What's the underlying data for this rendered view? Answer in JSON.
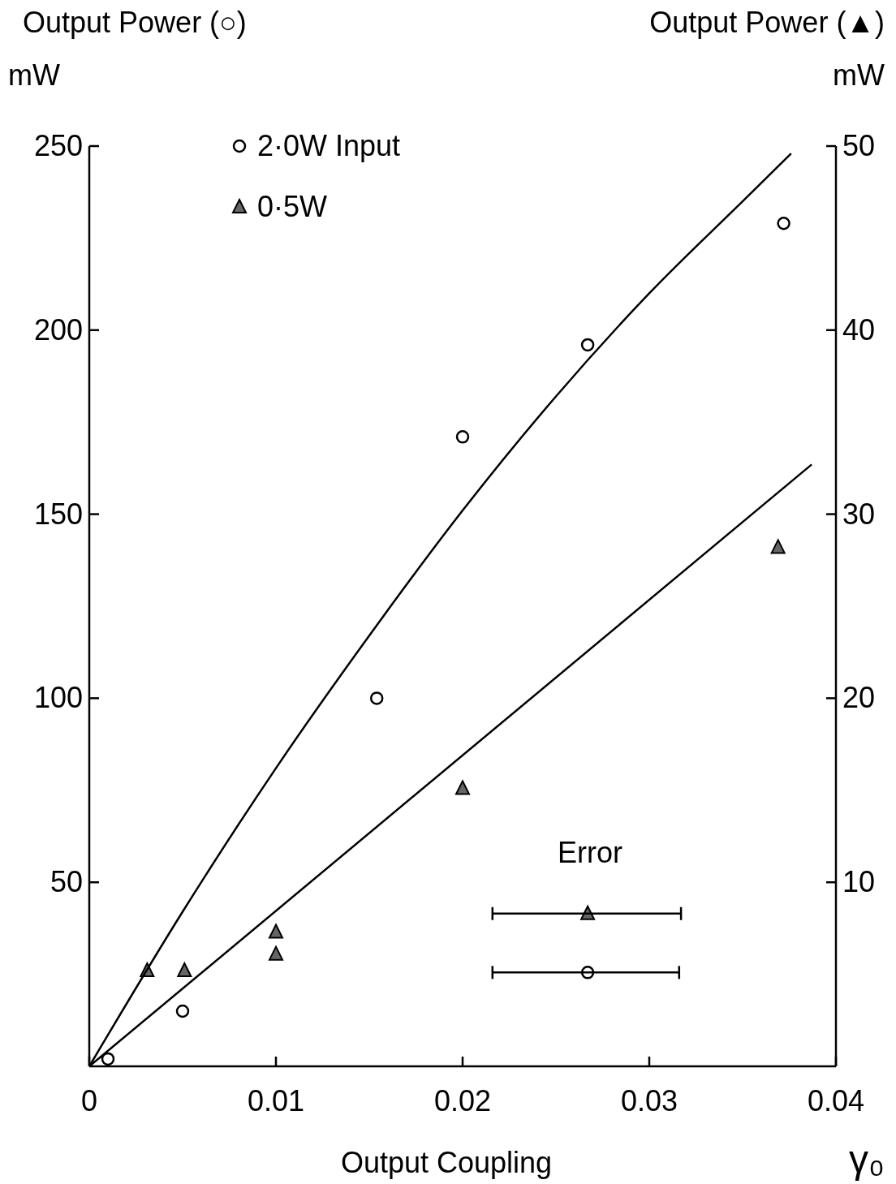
{
  "chart_data": {
    "type": "scatter",
    "xlabel": "Output Coupling",
    "ylabel": "Output Power (○)\nmW",
    "y2label": "Output Power (▲)\nmW",
    "xlim": [
      0,
      0.04
    ],
    "xticks": [
      0,
      0.01,
      0.02,
      0.03,
      0.04
    ],
    "ylim": [
      0,
      250
    ],
    "yticks": [
      50,
      100,
      150,
      200,
      250
    ],
    "y2lim": [
      0,
      50
    ],
    "y2ticks": [
      10,
      20,
      30,
      40,
      50
    ],
    "grid": false,
    "legend": "top left",
    "series": [
      {
        "name": "2·0W Input",
        "marker": "circle",
        "color": "#000000",
        "x": [
          0.001,
          0.005,
          0.0154,
          0.02,
          0.0267,
          0.0372
        ],
        "values": [
          2,
          15,
          100,
          171,
          196,
          229
        ]
      },
      {
        "name": "0·5W",
        "marker": "triangle",
        "color": "#000000",
        "axis": "y2",
        "x": [
          0.0031,
          0.0051,
          0.01,
          0.01,
          0.02,
          0.0369
        ],
        "values": [
          5.2,
          5.2,
          7.3,
          6.1,
          15.1,
          28.2
        ]
      },
      {
        "type": "line",
        "marker": "none",
        "color": "#000000",
        "x": [
          0,
          0.005,
          0.01,
          0.015,
          0.02,
          0.025,
          0.03,
          0.035,
          0.0376
        ],
        "values": [
          0,
          42,
          81,
          117,
          151,
          182,
          210,
          235,
          248
        ]
      },
      {
        "type": "line",
        "marker": "none",
        "color": "#000000",
        "axis": "y2",
        "x": [
          0,
          0.0387
        ],
        "values": [
          0,
          32.7
        ]
      },
      {
        "marker": "triangle",
        "color": "#000000",
        "axis": "y2",
        "x": [
          0.0267
        ],
        "values": [
          8.3
        ],
        "xerrors": [
          [
            0.0216,
            0.0317
          ]
        ]
      },
      {
        "marker": "circle",
        "color": "#000000",
        "x": [
          0.0267
        ],
        "values": [
          25.5
        ],
        "xerrors": [
          [
            0.0216,
            0.0316
          ]
        ]
      }
    ],
    "annotations": [
      "Error",
      "γ₀"
    ]
  }
}
